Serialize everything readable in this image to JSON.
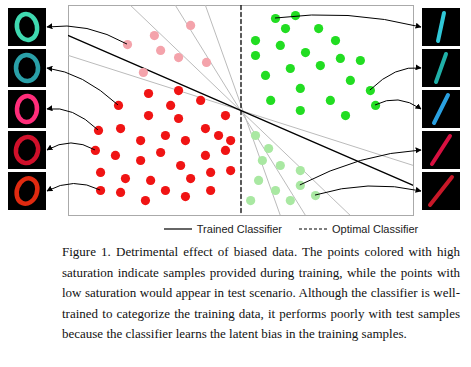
{
  "chart_data": {
    "type": "scatter",
    "xlim": [
      0,
      100
    ],
    "ylim": [
      0,
      100
    ],
    "tick_labels": false,
    "series": [
      {
        "type": "line",
        "color": "#bbbbbb",
        "x": [
          18.0,
          81.7
        ],
        "y": [
          100,
          0
        ]
      },
      {
        "type": "line",
        "color": "#bbbbbb",
        "x": [
          31.0,
          68.7
        ],
        "y": [
          100,
          0
        ]
      },
      {
        "type": "line",
        "color": "#bbbbbb",
        "x": [
          39.7,
          61.4
        ],
        "y": [
          100,
          0
        ]
      },
      {
        "type": "line",
        "color": "#bbbbbb",
        "x": [
          0,
          100
        ],
        "y": [
          76.2,
          23.8
        ]
      },
      {
        "type": "line",
        "name": "Trained Classifier",
        "color": "#000000",
        "line_style": "solid",
        "x": [
          0,
          100
        ],
        "y": [
          85.7,
          14.3
        ]
      },
      {
        "type": "line",
        "name": "Optimal Classifier",
        "color": "#000000",
        "line_style": "dashed",
        "x": [
          50,
          50
        ],
        "y": [
          100,
          0
        ]
      },
      {
        "type": "scatter",
        "color": "#f4a3ab",
        "marker": "circle",
        "x": [
          17.1,
          24.9,
          35.4,
          31.9,
          40.0,
          21.7,
          26.7
        ],
        "y": [
          81.4,
          85.7,
          90.5,
          75.2,
          72.9,
          68.1,
          78.6
        ]
      },
      {
        "type": "scatter",
        "color": "#f01414",
        "marker": "circle",
        "x": [
          23.2,
          31.9,
          14.5,
          23.2,
          31.9,
          8.7,
          15.1,
          20.9,
          28.1,
          33.9,
          39.7,
          45.5,
          7.8,
          13.6,
          20.9,
          26.7,
          32.5,
          39.7,
          45.5,
          47.0,
          9.3,
          16.5,
          23.8,
          28.1,
          35.4,
          41.2,
          47.0,
          15.1,
          22.3,
          33.9,
          41.2,
          9.3,
          29.6,
          38.3,
          43.5
        ],
        "y": [
          58.1,
          59.5,
          52.4,
          47.6,
          46.2,
          40.5,
          41.4,
          35.7,
          38.1,
          35.7,
          41.4,
          47.6,
          31.0,
          28.6,
          26.2,
          30.0,
          23.8,
          28.6,
          31.0,
          35.7,
          20.5,
          17.6,
          16.7,
          11.9,
          17.6,
          20.5,
          21.4,
          11.0,
          7.1,
          9.0,
          11.9,
          11.9,
          52.4,
          54.8,
          38.1
        ]
      },
      {
        "type": "scatter",
        "color": "#22dd22",
        "marker": "circle",
        "x": [
          60.0,
          65.8,
          72.5,
          54.2,
          61.4,
          68.7,
          77.4,
          64.3,
          57.1,
          73.0,
          81.7,
          87.5,
          67.2,
          75.9,
          58.6,
          67.2,
          80.3,
          89.0,
          54.2,
          78.8,
          62.9,
          84.6
        ],
        "y": [
          93.8,
          95.2,
          89.0,
          83.3,
          81.0,
          77.6,
          83.3,
          70.0,
          66.7,
          71.4,
          64.3,
          59.5,
          60.5,
          54.8,
          54.8,
          50.0,
          47.6,
          52.4,
          76.2,
          74.8,
          89.0,
          73.8
        ]
      },
      {
        "type": "scatter",
        "color": "#a9e8a2",
        "marker": "circle",
        "x": [
          54.2,
          58.0,
          56.2,
          61.4,
          55.1,
          60.0,
          67.2,
          64.3,
          71.6,
          67.2,
          52.8
        ],
        "y": [
          38.1,
          31.9,
          26.2,
          23.8,
          16.7,
          11.9,
          14.3,
          7.1,
          9.5,
          21.4,
          7.1
        ]
      }
    ]
  },
  "thumbnails": {
    "left": [
      {
        "color": "#3fd9b0",
        "from": [
          17.1,
          81.4
        ]
      },
      {
        "color": "#2aa0a8",
        "from": [
          14.5,
          52.4
        ]
      },
      {
        "color": "#ff2d7a",
        "from": [
          8.7,
          40.5
        ]
      },
      {
        "color": "#d0102a",
        "from": [
          7.8,
          31.0
        ]
      },
      {
        "color": "#e02a10",
        "from": [
          9.3,
          11.9
        ]
      }
    ],
    "right": [
      {
        "color": "#30c8d8",
        "from": [
          60.0,
          93.8
        ]
      },
      {
        "color": "#20b0a8",
        "from": [
          87.5,
          59.5
        ]
      },
      {
        "color": "#2aa0e0",
        "from": [
          89.0,
          52.4
        ]
      },
      {
        "color": "#d81040",
        "from": [
          67.2,
          14.3
        ]
      },
      {
        "color": "#c81828",
        "from": [
          71.6,
          9.5
        ]
      }
    ]
  },
  "caption": "Figure 1. Detrimental effect of biased data. The points colored with high saturation indicate samples provided during training, while the points with low saturation would appear in test scenario. Although the classifier is well-trained to categorize the training data, it performs poorly with test samples because the classifier learns the latent bias in the training samples."
}
